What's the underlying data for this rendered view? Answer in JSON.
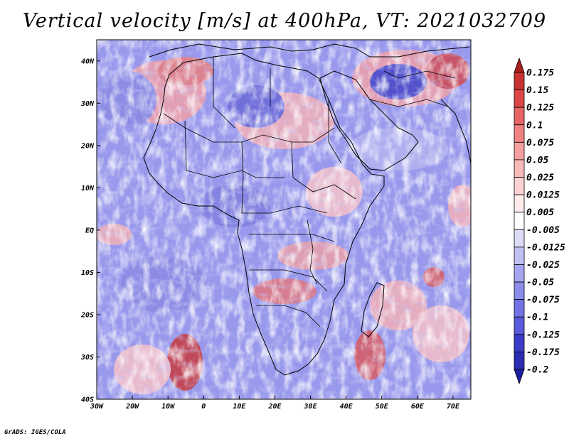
{
  "title": "Vertical velocity [m/s] at 400hPa, VT: 2021032709",
  "credit": "GrADS: IGES/COLA",
  "map": {
    "projection": "latlon",
    "lon_range": [
      -30,
      75
    ],
    "lat_range": [
      -40,
      45
    ],
    "x_ticks": [
      {
        "value": -30,
        "label": "30W"
      },
      {
        "value": -20,
        "label": "20W"
      },
      {
        "value": -10,
        "label": "10W"
      },
      {
        "value": 0,
        "label": "0"
      },
      {
        "value": 10,
        "label": "10E"
      },
      {
        "value": 20,
        "label": "20E"
      },
      {
        "value": 30,
        "label": "30E"
      },
      {
        "value": 40,
        "label": "40E"
      },
      {
        "value": 50,
        "label": "50E"
      },
      {
        "value": 60,
        "label": "60E"
      },
      {
        "value": 70,
        "label": "70E"
      }
    ],
    "y_ticks": [
      {
        "value": 40,
        "label": "40N"
      },
      {
        "value": 30,
        "label": "30N"
      },
      {
        "value": 20,
        "label": "20N"
      },
      {
        "value": 10,
        "label": "10N"
      },
      {
        "value": 0,
        "label": "EQ"
      },
      {
        "value": -10,
        "label": "10S"
      },
      {
        "value": -20,
        "label": "20S"
      },
      {
        "value": -30,
        "label": "30S"
      },
      {
        "value": -40,
        "label": "40S"
      }
    ]
  },
  "colorbar": {
    "orientation": "vertical",
    "extend": "both",
    "levels": [
      "0.175",
      "0.15",
      "0.125",
      "0.1",
      "0.075",
      "0.05",
      "0.025",
      "0.0125",
      "0.005",
      "-0.005",
      "-0.0125",
      "-0.025",
      "-0.05",
      "-0.075",
      "-0.1",
      "-0.125",
      "-0.175",
      "-0.2"
    ],
    "colors": [
      "#aa1e1e",
      "#c83232",
      "#dc4646",
      "#e66464",
      "#f08282",
      "#f5a0a0",
      "#fab9b9",
      "#fcd2d2",
      "#ffebeb",
      "#ffffff",
      "#dcdcf8",
      "#c0c0f5",
      "#a5a5f0",
      "#8c8ceb",
      "#7373e6",
      "#5a5adc",
      "#3c3cc8",
      "#2d2db4",
      "#1e1ea0"
    ]
  }
}
